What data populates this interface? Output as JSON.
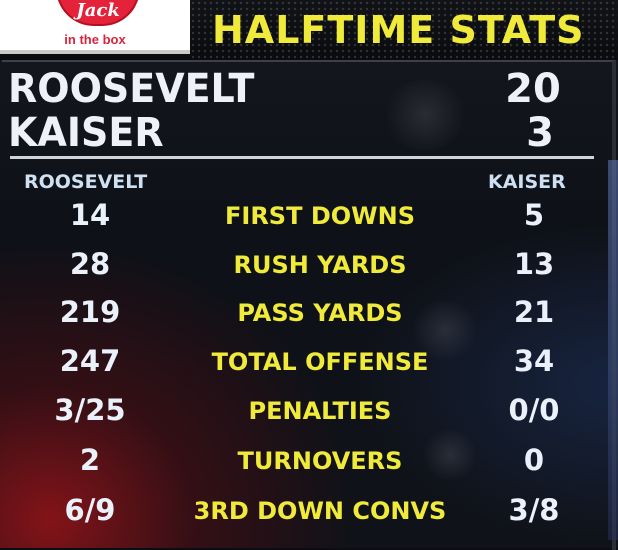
{
  "header": {
    "sponsor_logo_text": "Jack",
    "sponsor_sub": "in the box",
    "title": "HALFTIME STATS"
  },
  "score": {
    "home_team": "ROOSEVELT",
    "home_score": "20",
    "away_team": "KAISER",
    "away_score": "3"
  },
  "columns": {
    "home": "ROOSEVELT",
    "away": "KAISER"
  },
  "stats": [
    {
      "label": "FIRST DOWNS",
      "home": "14",
      "away": "5"
    },
    {
      "label": "RUSH YARDS",
      "home": "28",
      "away": "13"
    },
    {
      "label": "PASS YARDS",
      "home": "219",
      "away": "21"
    },
    {
      "label": "TOTAL OFFENSE",
      "home": "247",
      "away": "34"
    },
    {
      "label": "PENALTIES",
      "home": "3/25",
      "away": "0/0"
    },
    {
      "label": "TURNOVERS",
      "home": "2",
      "away": "0"
    },
    {
      "label": "3RD DOWN CONVS",
      "home": "6/9",
      "away": "3/8"
    }
  ],
  "colors": {
    "accent_yellow": "#f0ea3a",
    "text_white": "#eef2f8",
    "brand_red": "#e4233a"
  }
}
